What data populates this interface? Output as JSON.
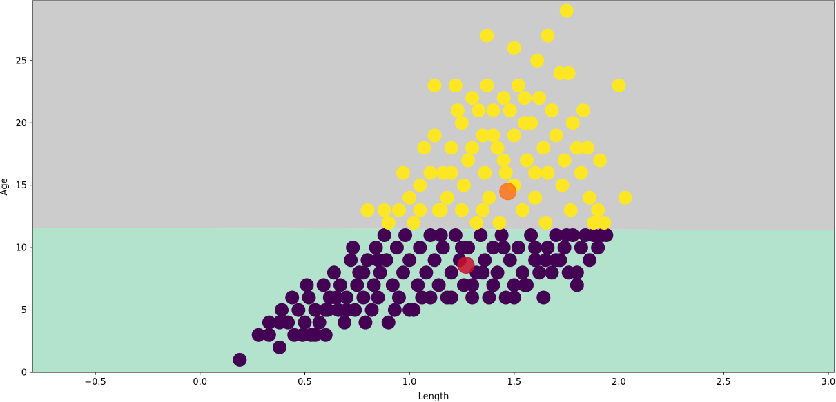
{
  "chart_data": {
    "type": "scatter",
    "title": "",
    "xlabel": "Length",
    "ylabel": "Age",
    "xlim": [
      -0.8,
      3.03
    ],
    "ylim": [
      0,
      29.8
    ],
    "xticks": [
      "−0.5",
      "0.0",
      "0.5",
      "1.0",
      "1.5",
      "2.0",
      "2.5",
      "3.0"
    ],
    "xtick_values": [
      -0.5,
      0.0,
      0.5,
      1.0,
      1.5,
      2.0,
      2.5,
      3.0
    ],
    "yticks": [
      "0",
      "5",
      "10",
      "15",
      "20",
      "25"
    ],
    "ytick_values": [
      0,
      5,
      10,
      15,
      20,
      25
    ],
    "grid": false,
    "decision_regions": [
      {
        "class": 1,
        "color": "#cccccc",
        "y_boundary_left": 11.6,
        "y_boundary_right": 11.4
      },
      {
        "class": 0,
        "color": "#b3e2cd"
      }
    ],
    "series": [
      {
        "color": "#440154",
        "points": [
          [
            0.19,
            1
          ],
          [
            0.28,
            3
          ],
          [
            0.33,
            3
          ],
          [
            0.38,
            2
          ],
          [
            0.33,
            4
          ],
          [
            0.38,
            4
          ],
          [
            0.39,
            5
          ],
          [
            0.42,
            4
          ],
          [
            0.44,
            6
          ],
          [
            0.45,
            3
          ],
          [
            0.47,
            5
          ],
          [
            0.49,
            3
          ],
          [
            0.5,
            4
          ],
          [
            0.51,
            7
          ],
          [
            0.52,
            6
          ],
          [
            0.53,
            3
          ],
          [
            0.55,
            5
          ],
          [
            0.57,
            4
          ],
          [
            0.6,
            3
          ],
          [
            0.59,
            7
          ],
          [
            0.61,
            5
          ],
          [
            0.62,
            6
          ],
          [
            0.64,
            8
          ],
          [
            0.66,
            5
          ],
          [
            0.67,
            7
          ],
          [
            0.69,
            4
          ],
          [
            0.7,
            6
          ],
          [
            0.72,
            9
          ],
          [
            0.73,
            10
          ],
          [
            0.74,
            5
          ],
          [
            0.75,
            7
          ],
          [
            0.76,
            8
          ],
          [
            0.78,
            6
          ],
          [
            0.79,
            4
          ],
          [
            0.8,
            9
          ],
          [
            0.82,
            5
          ],
          [
            0.83,
            7
          ],
          [
            0.84,
            10
          ],
          [
            0.85,
            6
          ],
          [
            0.86,
            8
          ],
          [
            0.88,
            11
          ],
          [
            0.89,
            9
          ],
          [
            0.9,
            4
          ],
          [
            0.92,
            7
          ],
          [
            0.93,
            5
          ],
          [
            0.94,
            10
          ],
          [
            0.95,
            6
          ],
          [
            0.97,
            8
          ],
          [
            0.98,
            11
          ],
          [
            1.0,
            9
          ],
          [
            1.02,
            5
          ],
          [
            1.04,
            7
          ],
          [
            1.05,
            10
          ],
          [
            1.06,
            6
          ],
          [
            1.08,
            8
          ],
          [
            1.1,
            11
          ],
          [
            1.12,
            9
          ],
          [
            1.14,
            7
          ],
          [
            1.16,
            10
          ],
          [
            1.18,
            6
          ],
          [
            1.2,
            8
          ],
          [
            1.22,
            11
          ],
          [
            1.24,
            9
          ],
          [
            1.26,
            7
          ],
          [
            1.28,
            10
          ],
          [
            1.3,
            6
          ],
          [
            1.32,
            8
          ],
          [
            1.34,
            11
          ],
          [
            1.36,
            9
          ],
          [
            1.38,
            6
          ],
          [
            1.4,
            10
          ],
          [
            1.42,
            8
          ],
          [
            1.44,
            11
          ],
          [
            1.46,
            6
          ],
          [
            1.48,
            9
          ],
          [
            1.5,
            7
          ],
          [
            1.52,
            10
          ],
          [
            1.54,
            8
          ],
          [
            1.56,
            7
          ],
          [
            1.58,
            11
          ],
          [
            1.6,
            9
          ],
          [
            1.62,
            8
          ],
          [
            1.64,
            6
          ],
          [
            1.66,
            10
          ],
          [
            1.68,
            8
          ],
          [
            1.7,
            11
          ],
          [
            1.72,
            9
          ],
          [
            1.74,
            10
          ],
          [
            1.76,
            8
          ],
          [
            1.78,
            11
          ],
          [
            1.8,
            7
          ],
          [
            1.82,
            10
          ],
          [
            1.84,
            11
          ],
          [
            1.86,
            9
          ],
          [
            1.88,
            11
          ],
          [
            1.9,
            10
          ],
          [
            1.92,
            11
          ],
          [
            1.94,
            11
          ],
          [
            0.55,
            3
          ],
          [
            0.6,
            5
          ],
          [
            0.65,
            6
          ],
          [
            0.7,
            5
          ],
          [
            0.78,
            8
          ],
          [
            0.85,
            9
          ],
          [
            1.0,
            5
          ],
          [
            1.1,
            6
          ],
          [
            1.2,
            6
          ],
          [
            1.3,
            7
          ],
          [
            1.4,
            7
          ],
          [
            1.5,
            6
          ],
          [
            1.55,
            7
          ],
          [
            1.65,
            9
          ],
          [
            1.8,
            8
          ],
          [
            1.15,
            11
          ],
          [
            1.25,
            10
          ],
          [
            1.35,
            8
          ],
          [
            1.45,
            10
          ],
          [
            1.6,
            10
          ],
          [
            1.7,
            9
          ],
          [
            1.75,
            11
          ]
        ]
      },
      {
        "color": "#fde725",
        "points": [
          [
            0.8,
            13
          ],
          [
            0.88,
            13
          ],
          [
            0.9,
            12
          ],
          [
            0.95,
            13
          ],
          [
            0.97,
            16
          ],
          [
            1.0,
            14
          ],
          [
            1.02,
            12
          ],
          [
            1.05,
            15
          ],
          [
            1.07,
            18
          ],
          [
            1.1,
            16
          ],
          [
            1.12,
            19
          ],
          [
            1.12,
            23
          ],
          [
            1.14,
            13
          ],
          [
            1.16,
            16
          ],
          [
            1.18,
            14
          ],
          [
            1.2,
            18
          ],
          [
            1.22,
            23
          ],
          [
            1.23,
            21
          ],
          [
            1.25,
            20
          ],
          [
            1.26,
            15
          ],
          [
            1.28,
            17
          ],
          [
            1.3,
            22
          ],
          [
            1.32,
            12
          ],
          [
            1.33,
            21
          ],
          [
            1.35,
            19
          ],
          [
            1.36,
            16
          ],
          [
            1.37,
            23
          ],
          [
            1.37,
            27
          ],
          [
            1.38,
            14
          ],
          [
            1.4,
            21
          ],
          [
            1.42,
            18
          ],
          [
            1.43,
            12
          ],
          [
            1.45,
            22
          ],
          [
            1.46,
            16
          ],
          [
            1.48,
            21
          ],
          [
            1.5,
            26
          ],
          [
            1.5,
            19
          ],
          [
            1.52,
            23
          ],
          [
            1.54,
            13
          ],
          [
            1.55,
            22
          ],
          [
            1.56,
            17
          ],
          [
            1.58,
            20
          ],
          [
            1.6,
            14
          ],
          [
            1.61,
            25
          ],
          [
            1.62,
            22
          ],
          [
            1.64,
            18
          ],
          [
            1.66,
            27
          ],
          [
            1.66,
            16
          ],
          [
            1.68,
            21
          ],
          [
            1.7,
            19
          ],
          [
            1.72,
            24
          ],
          [
            1.73,
            15
          ],
          [
            1.74,
            17
          ],
          [
            1.75,
            29
          ],
          [
            1.76,
            24
          ],
          [
            1.77,
            13
          ],
          [
            1.78,
            20
          ],
          [
            1.8,
            18
          ],
          [
            1.82,
            16
          ],
          [
            1.83,
            21
          ],
          [
            1.85,
            18
          ],
          [
            1.86,
            14
          ],
          [
            1.88,
            12
          ],
          [
            1.9,
            13
          ],
          [
            1.91,
            17
          ],
          [
            1.93,
            12
          ],
          [
            2.0,
            23
          ],
          [
            2.03,
            14
          ],
          [
            1.2,
            16
          ],
          [
            1.3,
            18
          ],
          [
            1.4,
            19
          ],
          [
            1.45,
            17
          ],
          [
            1.55,
            20
          ],
          [
            1.65,
            12
          ],
          [
            1.35,
            13
          ],
          [
            1.25,
            13
          ],
          [
            1.15,
            13
          ],
          [
            1.05,
            13
          ],
          [
            1.5,
            15
          ],
          [
            1.6,
            16
          ]
        ]
      }
    ],
    "centroids": [
      {
        "x": 1.27,
        "y": 8.6,
        "color": "#c8102e"
      },
      {
        "x": 1.47,
        "y": 14.5,
        "color": "#ff7418"
      }
    ]
  }
}
